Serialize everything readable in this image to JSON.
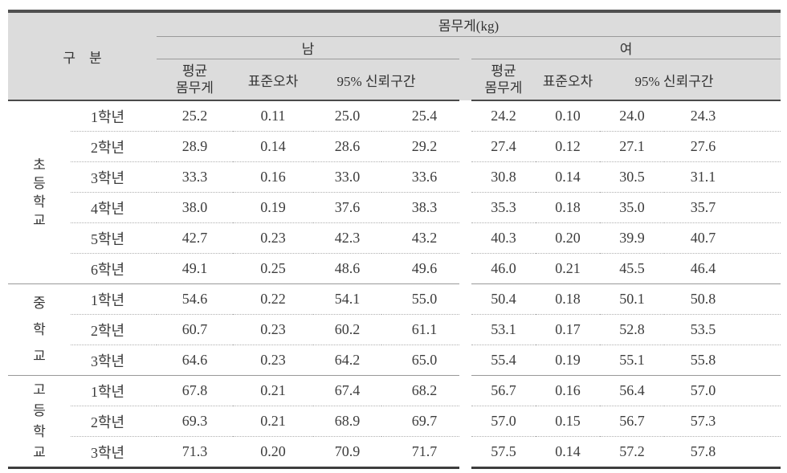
{
  "table": {
    "corner_label": "구　분",
    "group_title": "몸무게(kg)",
    "male_label": "남",
    "female_label": "여",
    "sub_headers": {
      "avg": "평균\n몸무게",
      "se": "표준오차",
      "ci": "95% 신뢰구간"
    },
    "sections": [
      {
        "school": "초\n등\n학\n교",
        "rows": [
          {
            "grade": "1학년",
            "m": [
              "25.2",
              "0.11",
              "25.0",
              "25.4"
            ],
            "f": [
              "24.2",
              "0.10",
              "24.0",
              "24.3"
            ]
          },
          {
            "grade": "2학년",
            "m": [
              "28.9",
              "0.14",
              "28.6",
              "29.2"
            ],
            "f": [
              "27.4",
              "0.12",
              "27.1",
              "27.6"
            ]
          },
          {
            "grade": "3학년",
            "m": [
              "33.3",
              "0.16",
              "33.0",
              "33.6"
            ],
            "f": [
              "30.8",
              "0.14",
              "30.5",
              "31.1"
            ]
          },
          {
            "grade": "4학년",
            "m": [
              "38.0",
              "0.19",
              "37.6",
              "38.3"
            ],
            "f": [
              "35.3",
              "0.18",
              "35.0",
              "35.7"
            ]
          },
          {
            "grade": "5학년",
            "m": [
              "42.7",
              "0.23",
              "42.3",
              "43.2"
            ],
            "f": [
              "40.3",
              "0.20",
              "39.9",
              "40.7"
            ]
          },
          {
            "grade": "6학년",
            "m": [
              "49.1",
              "0.25",
              "48.6",
              "49.6"
            ],
            "f": [
              "46.0",
              "0.21",
              "45.5",
              "46.4"
            ]
          }
        ]
      },
      {
        "school": "중\n학\n교",
        "rows": [
          {
            "grade": "1학년",
            "m": [
              "54.6",
              "0.22",
              "54.1",
              "55.0"
            ],
            "f": [
              "50.4",
              "0.18",
              "50.1",
              "50.8"
            ]
          },
          {
            "grade": "2학년",
            "m": [
              "60.7",
              "0.23",
              "60.2",
              "61.1"
            ],
            "f": [
              "53.1",
              "0.17",
              "52.8",
              "53.5"
            ]
          },
          {
            "grade": "3학년",
            "m": [
              "64.6",
              "0.23",
              "64.2",
              "65.0"
            ],
            "f": [
              "55.4",
              "0.19",
              "55.1",
              "55.8"
            ]
          }
        ]
      },
      {
        "school": "고\n등\n학\n교",
        "rows": [
          {
            "grade": "1학년",
            "m": [
              "67.8",
              "0.21",
              "67.4",
              "68.2"
            ],
            "f": [
              "56.7",
              "0.16",
              "56.4",
              "57.0"
            ]
          },
          {
            "grade": "2학년",
            "m": [
              "69.3",
              "0.21",
              "68.9",
              "69.7"
            ],
            "f": [
              "57.0",
              "0.15",
              "56.7",
              "57.3"
            ]
          },
          {
            "grade": "3학년",
            "m": [
              "71.3",
              "0.20",
              "70.9",
              "71.7"
            ],
            "f": [
              "57.5",
              "0.14",
              "57.2",
              "57.8"
            ]
          }
        ]
      }
    ],
    "colors": {
      "header_bg": "#dcdcdc",
      "thick_rule": "#4a4a4a",
      "thin_rule": "#9a9a9a",
      "dotted_rule": "#b0b0b0",
      "text": "#333333"
    }
  }
}
